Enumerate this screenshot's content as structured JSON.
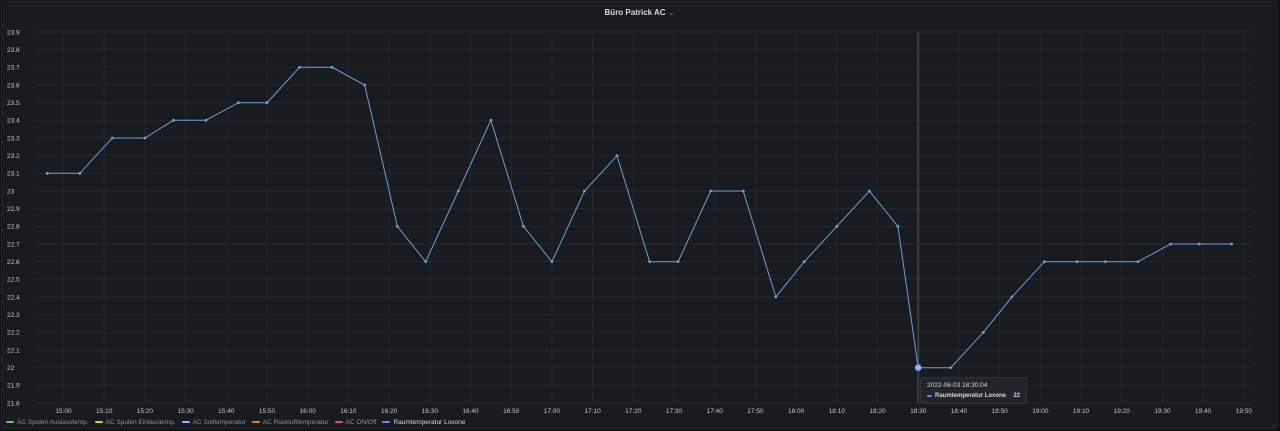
{
  "panel": {
    "title": "Büro Patrick AC",
    "chevron": "chevron-down-icon"
  },
  "colors": {
    "line": "#6e9fd8",
    "grid": "#262930",
    "crosshair": "#3a3d44"
  },
  "legend": [
    {
      "name": "AC Spulen Auslasstemp.",
      "color": "#73bf69",
      "active": false
    },
    {
      "name": "AC Spulen Einlasstemp.",
      "color": "#f2cc0c",
      "active": false
    },
    {
      "name": "AC Solltemperatur",
      "color": "#8ab8ff",
      "active": false
    },
    {
      "name": "AC Rücklufttemperatur",
      "color": "#ff780a",
      "active": false
    },
    {
      "name": "AC ON/Off",
      "color": "#f2495c",
      "active": false
    },
    {
      "name": "Raumtemperatur Loxone",
      "color": "#5794f2",
      "active": true
    }
  ],
  "tooltip": {
    "time": "2022-06-03 18:30:04",
    "series": "Raumtemperatur Loxone",
    "value": "22"
  },
  "chart_data": {
    "type": "line",
    "ylim": [
      21.8,
      23.9
    ],
    "yticks": [
      "23.9",
      "23.8",
      "23.7",
      "23.6",
      "23.5",
      "23.4",
      "23.3",
      "23.2",
      "23.1",
      "23",
      "22.9",
      "22.8",
      "22.7",
      "22.6",
      "22.5",
      "22.4",
      "22.3",
      "22.2",
      "22.1",
      "22",
      "21.9",
      "21.8"
    ],
    "xlim": [
      "14:53",
      "19:52"
    ],
    "xticks": [
      "15:00",
      "15:10",
      "15:20",
      "15:30",
      "15:40",
      "15:50",
      "16:00",
      "16:10",
      "16:20",
      "16:30",
      "16:40",
      "16:50",
      "17:00",
      "17:10",
      "17:20",
      "17:30",
      "17:40",
      "17:50",
      "18:00",
      "18:10",
      "18:20",
      "18:30",
      "18:40",
      "18:50",
      "19:00",
      "19:10",
      "19:20",
      "19:30",
      "19:40",
      "19:50"
    ],
    "series": [
      {
        "name": "Raumtemperatur Loxone",
        "x": [
          "14:56",
          "15:04",
          "15:12",
          "15:20",
          "15:27",
          "15:35",
          "15:43",
          "15:50",
          "15:58",
          "16:06",
          "16:14",
          "16:22",
          "16:29",
          "16:37",
          "16:45",
          "16:53",
          "17:00",
          "17:08",
          "17:16",
          "17:24",
          "17:31",
          "17:39",
          "17:47",
          "17:55",
          "18:02",
          "18:10",
          "18:18",
          "18:25",
          "18:30",
          "18:38",
          "18:46",
          "18:53",
          "19:01",
          "19:09",
          "19:16",
          "19:24",
          "19:32",
          "19:39",
          "19:47"
        ],
        "y": [
          23.1,
          23.1,
          23.3,
          23.3,
          23.4,
          23.4,
          23.5,
          23.5,
          23.7,
          23.7,
          23.6,
          22.8,
          22.6,
          23.0,
          23.4,
          22.8,
          22.6,
          23.0,
          23.2,
          22.6,
          22.6,
          23.0,
          23.0,
          22.4,
          22.6,
          22.8,
          23.0,
          22.8,
          22.0,
          22.0,
          22.2,
          22.4,
          22.6,
          22.6,
          22.6,
          22.6,
          22.7,
          22.7,
          22.7
        ]
      }
    ],
    "highlight": {
      "x": "18:30",
      "y": 22.0
    }
  }
}
